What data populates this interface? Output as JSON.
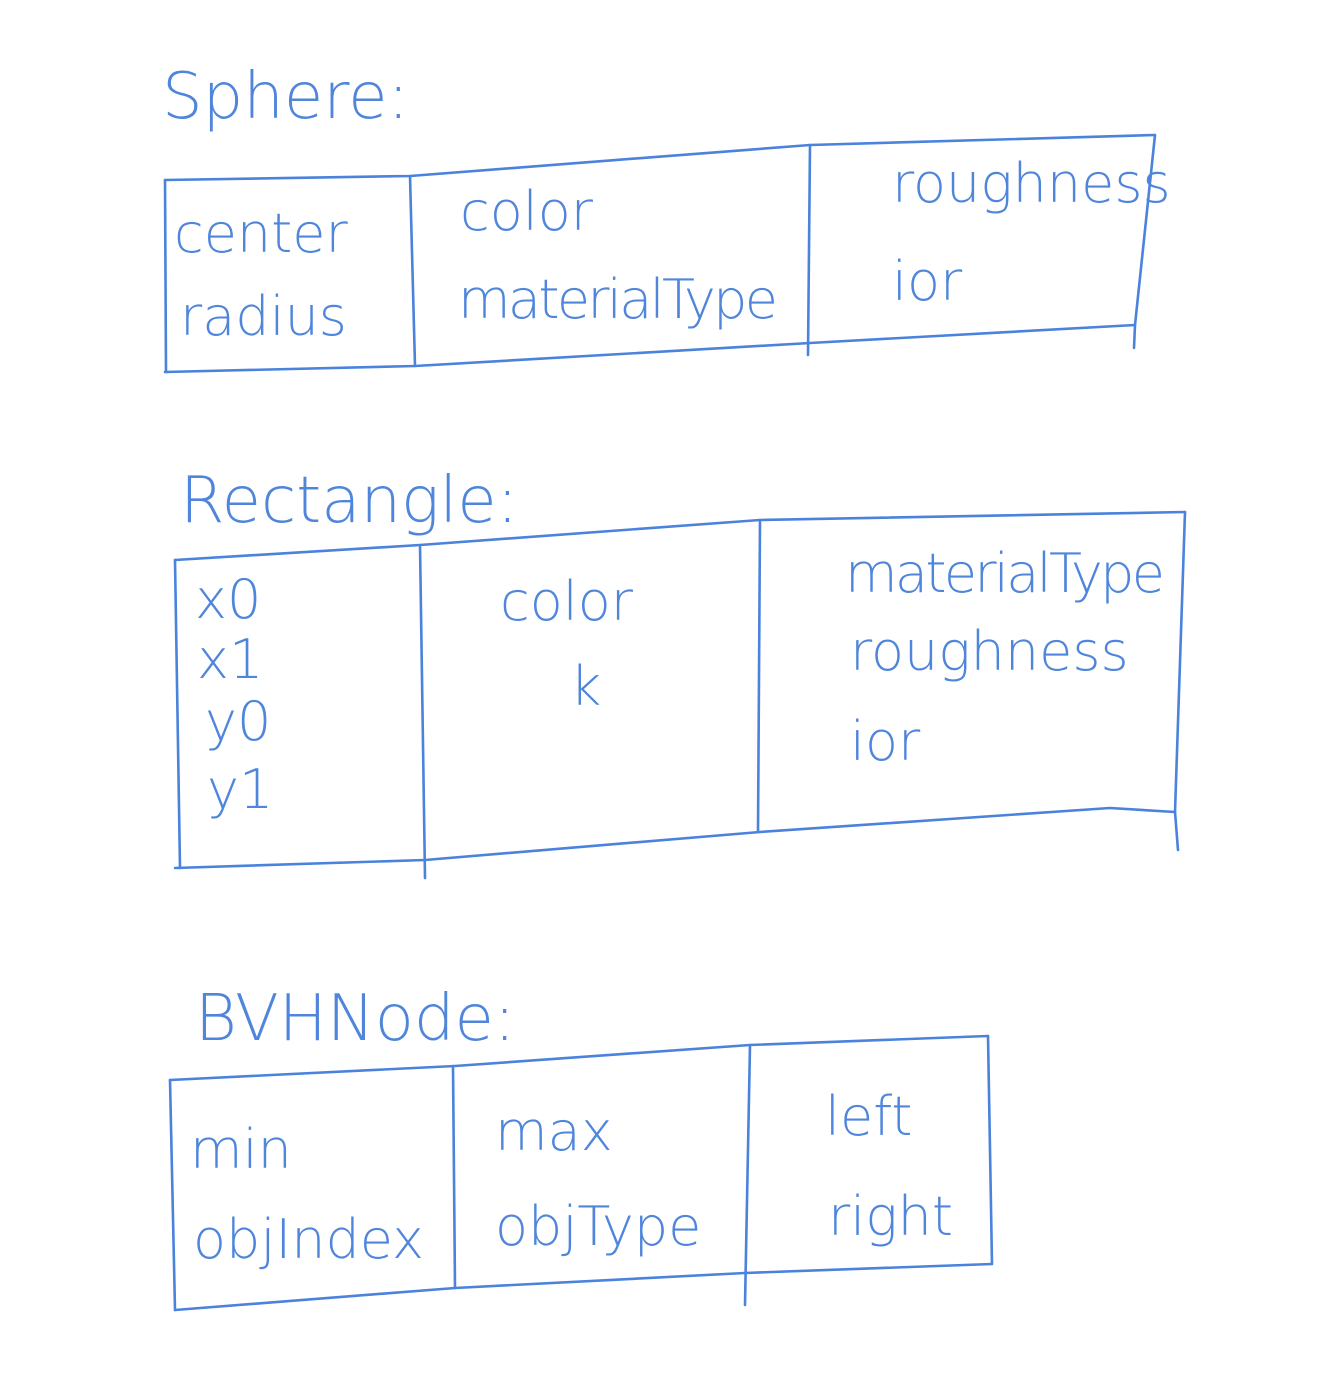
{
  "colors": {
    "ink": "#4f86dc",
    "stroke": "#4a82dc",
    "background": "#ffffff"
  },
  "structs": [
    {
      "name": "Sphere:",
      "columns": [
        {
          "fields": [
            "center",
            "radius"
          ]
        },
        {
          "fields": [
            "color",
            "materialType"
          ]
        },
        {
          "fields": [
            "roughness",
            "ior"
          ]
        }
      ]
    },
    {
      "name": "Rectangle:",
      "columns": [
        {
          "fields": [
            "x0",
            "x1",
            "y0",
            "y1"
          ]
        },
        {
          "fields": [
            "color",
            "k"
          ]
        },
        {
          "fields": [
            "materialType",
            "roughness",
            "ior"
          ]
        }
      ]
    },
    {
      "name": "BVHNode:",
      "columns": [
        {
          "fields": [
            "min",
            "objIndex"
          ]
        },
        {
          "fields": [
            "max",
            "objType"
          ]
        },
        {
          "fields": [
            "left",
            "right"
          ]
        }
      ]
    }
  ]
}
